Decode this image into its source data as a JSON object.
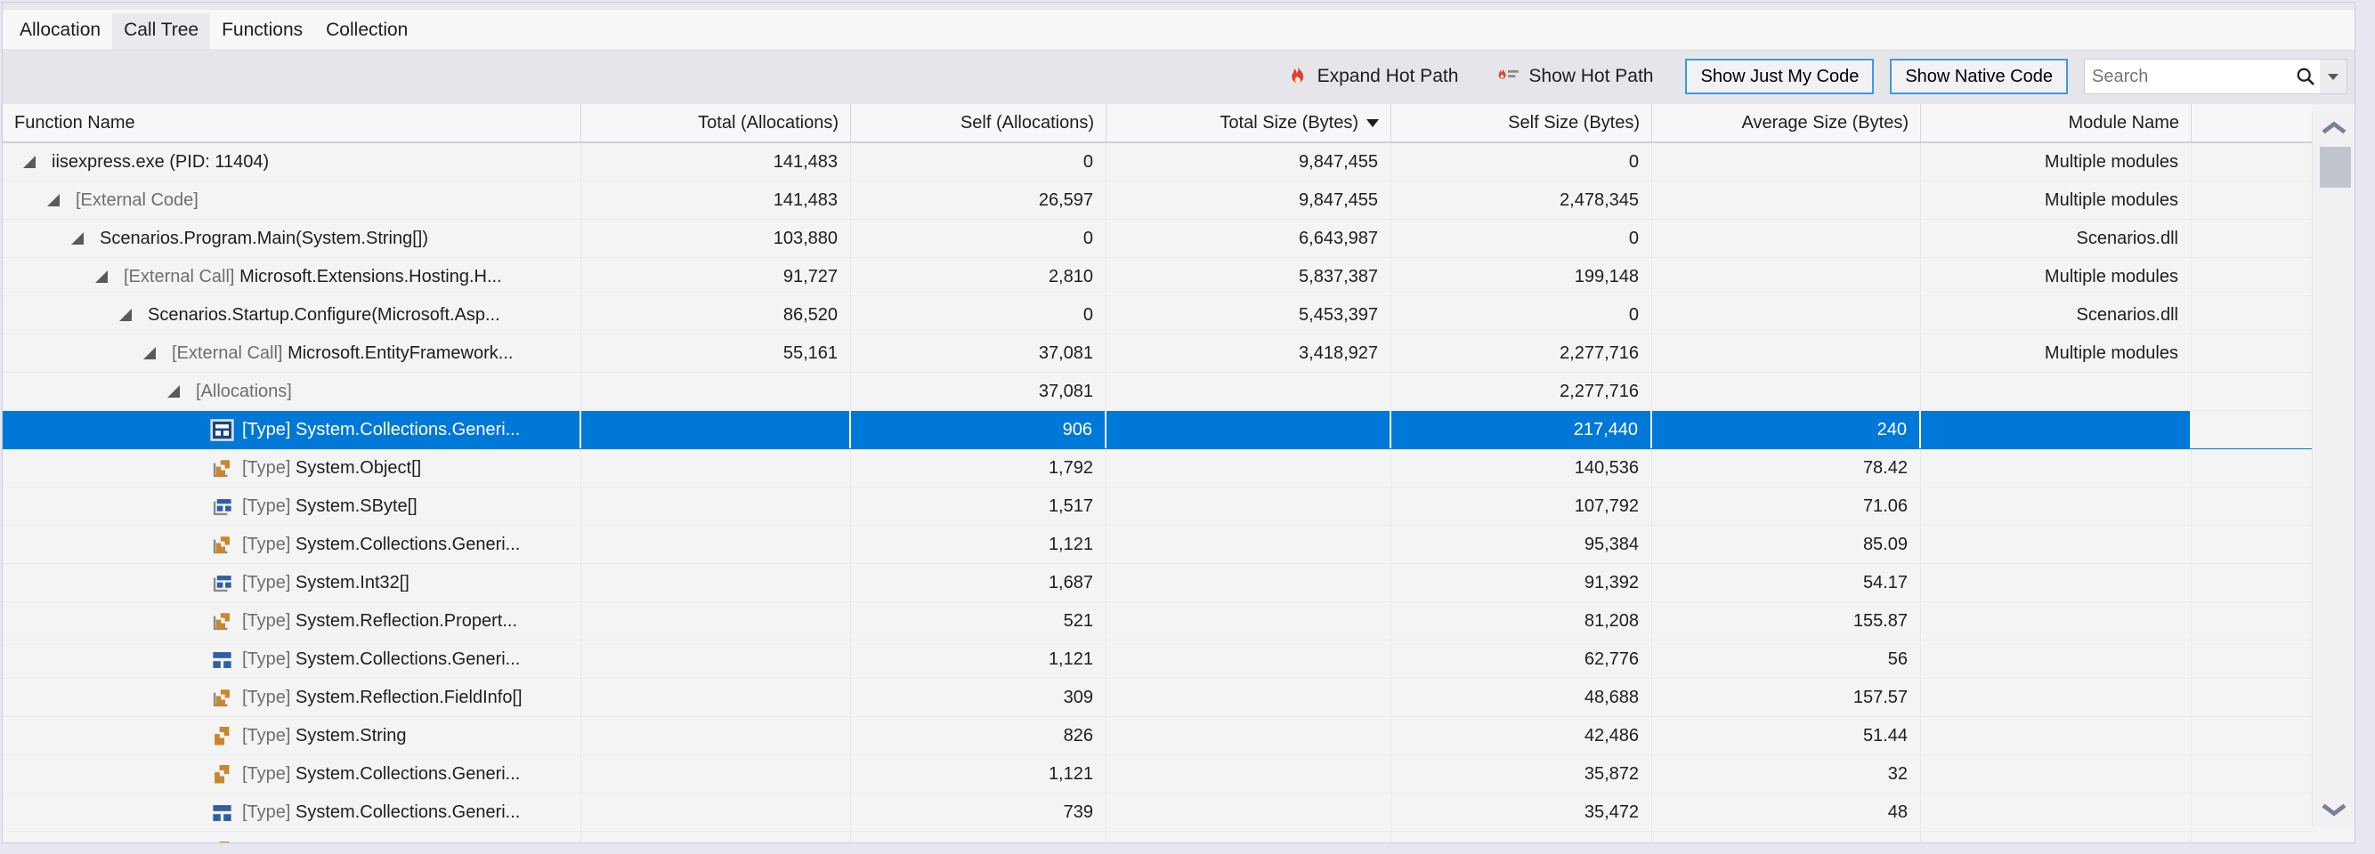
{
  "tabs": [
    {
      "label": "Allocation",
      "active": false
    },
    {
      "label": "Call Tree",
      "active": true
    },
    {
      "label": "Functions",
      "active": false
    },
    {
      "label": "Collection",
      "active": false
    }
  ],
  "toolbar": {
    "expand_hot_path": "Expand Hot Path",
    "show_hot_path": "Show Hot Path",
    "show_just_my_code": "Show Just My Code",
    "show_native_code": "Show Native Code",
    "search_placeholder": "Search",
    "icons": [
      "flame-icon",
      "flame-lines-icon",
      "search-icon",
      "chevron-down-icon"
    ]
  },
  "table": {
    "columns": [
      {
        "id": "name",
        "label": "Function Name",
        "align": "left",
        "sorted": false
      },
      {
        "id": "total_alloc",
        "label": "Total (Allocations)",
        "align": "right",
        "sorted": false
      },
      {
        "id": "self_alloc",
        "label": "Self (Allocations)",
        "align": "right",
        "sorted": false
      },
      {
        "id": "total_size",
        "label": "Total Size (Bytes)",
        "align": "right",
        "sorted": true,
        "sort_dir": "desc"
      },
      {
        "id": "self_size",
        "label": "Self Size (Bytes)",
        "align": "right",
        "sorted": false
      },
      {
        "id": "avg_size",
        "label": "Average Size (Bytes)",
        "align": "right",
        "sorted": false
      },
      {
        "id": "module",
        "label": "Module Name",
        "align": "right",
        "sorted": false
      }
    ],
    "rows": [
      {
        "level": 0,
        "expander": true,
        "icon": null,
        "prefix": "",
        "name": "iisexpress.exe (PID: 11404)",
        "total_alloc": "141,483",
        "self_alloc": "0",
        "total_size": "9,847,455",
        "self_size": "0",
        "avg_size": "",
        "module": "Multiple modules",
        "selected": false
      },
      {
        "level": 1,
        "expander": true,
        "icon": null,
        "prefix": "[External Code]",
        "name": "",
        "total_alloc": "141,483",
        "self_alloc": "26,597",
        "total_size": "9,847,455",
        "self_size": "2,478,345",
        "avg_size": "",
        "module": "Multiple modules",
        "selected": false
      },
      {
        "level": 2,
        "expander": true,
        "icon": null,
        "prefix": "",
        "name": "Scenarios.Program.Main(System.String[])",
        "total_alloc": "103,880",
        "self_alloc": "0",
        "total_size": "6,643,987",
        "self_size": "0",
        "avg_size": "",
        "module": "Scenarios.dll",
        "selected": false
      },
      {
        "level": 3,
        "expander": true,
        "icon": null,
        "prefix": "[External Call] ",
        "name": "Microsoft.Extensions.Hosting.H...",
        "total_alloc": "91,727",
        "self_alloc": "2,810",
        "total_size": "5,837,387",
        "self_size": "199,148",
        "avg_size": "",
        "module": "Multiple modules",
        "selected": false
      },
      {
        "level": 4,
        "expander": true,
        "icon": null,
        "prefix": "",
        "name": "Scenarios.Startup.Configure(Microsoft.Asp...",
        "total_alloc": "86,520",
        "self_alloc": "0",
        "total_size": "5,453,397",
        "self_size": "0",
        "avg_size": "",
        "module": "Scenarios.dll",
        "selected": false
      },
      {
        "level": 5,
        "expander": true,
        "icon": null,
        "prefix": "[External Call] ",
        "name": "Microsoft.EntityFramework...",
        "total_alloc": "55,161",
        "self_alloc": "37,081",
        "total_size": "3,418,927",
        "self_size": "2,277,716",
        "avg_size": "",
        "module": "Multiple modules",
        "selected": false
      },
      {
        "level": 6,
        "expander": true,
        "icon": null,
        "prefix": "[Allocations]",
        "name": "",
        "total_alloc": "",
        "self_alloc": "37,081",
        "total_size": "",
        "self_size": "2,277,716",
        "avg_size": "",
        "module": "",
        "selected": false
      },
      {
        "level": 7,
        "expander": false,
        "icon": "type-table-framed",
        "prefix": "[Type] ",
        "name": "System.Collections.Generi...",
        "total_alloc": "",
        "self_alloc": "906",
        "total_size": "",
        "self_size": "217,440",
        "avg_size": "240",
        "module": "",
        "selected": true
      },
      {
        "level": 7,
        "expander": false,
        "icon": "type-bracket-orange",
        "prefix": "[Type] ",
        "name": "System.Object[]",
        "total_alloc": "",
        "self_alloc": "1,792",
        "total_size": "",
        "self_size": "140,536",
        "avg_size": "78.42",
        "module": "",
        "selected": false
      },
      {
        "level": 7,
        "expander": false,
        "icon": "type-bracket-blue",
        "prefix": "[Type] ",
        "name": "System.SByte[]",
        "total_alloc": "",
        "self_alloc": "1,517",
        "total_size": "",
        "self_size": "107,792",
        "avg_size": "71.06",
        "module": "",
        "selected": false
      },
      {
        "level": 7,
        "expander": false,
        "icon": "type-bracket-orange",
        "prefix": "[Type] ",
        "name": "System.Collections.Generi...",
        "total_alloc": "",
        "self_alloc": "1,121",
        "total_size": "",
        "self_size": "95,384",
        "avg_size": "85.09",
        "module": "",
        "selected": false
      },
      {
        "level": 7,
        "expander": false,
        "icon": "type-bracket-blue",
        "prefix": "[Type] ",
        "name": "System.Int32[]",
        "total_alloc": "",
        "self_alloc": "1,687",
        "total_size": "",
        "self_size": "91,392",
        "avg_size": "54.17",
        "module": "",
        "selected": false
      },
      {
        "level": 7,
        "expander": false,
        "icon": "type-bracket-orange",
        "prefix": "[Type] ",
        "name": "System.Reflection.Propert...",
        "total_alloc": "",
        "self_alloc": "521",
        "total_size": "",
        "self_size": "81,208",
        "avg_size": "155.87",
        "module": "",
        "selected": false
      },
      {
        "level": 7,
        "expander": false,
        "icon": "type-table-blue",
        "prefix": "[Type] ",
        "name": "System.Collections.Generi...",
        "total_alloc": "",
        "self_alloc": "1,121",
        "total_size": "",
        "self_size": "62,776",
        "avg_size": "56",
        "module": "",
        "selected": false
      },
      {
        "level": 7,
        "expander": false,
        "icon": "type-bracket-orange",
        "prefix": "[Type] ",
        "name": "System.Reflection.FieldInfo[]",
        "total_alloc": "",
        "self_alloc": "309",
        "total_size": "",
        "self_size": "48,688",
        "avg_size": "157.57",
        "module": "",
        "selected": false
      },
      {
        "level": 7,
        "expander": false,
        "icon": "type-arrows-orange",
        "prefix": "[Type] ",
        "name": "System.String",
        "total_alloc": "",
        "self_alloc": "826",
        "total_size": "",
        "self_size": "42,486",
        "avg_size": "51.44",
        "module": "",
        "selected": false
      },
      {
        "level": 7,
        "expander": false,
        "icon": "type-arrows-orange",
        "prefix": "[Type] ",
        "name": "System.Collections.Generi...",
        "total_alloc": "",
        "self_alloc": "1,121",
        "total_size": "",
        "self_size": "35,872",
        "avg_size": "32",
        "module": "",
        "selected": false
      },
      {
        "level": 7,
        "expander": false,
        "icon": "type-table-blue",
        "prefix": "[Type] ",
        "name": "System.Collections.Generi...",
        "total_alloc": "",
        "self_alloc": "739",
        "total_size": "",
        "self_size": "35,472",
        "avg_size": "48",
        "module": "",
        "selected": false
      },
      {
        "level": 7,
        "expander": false,
        "icon": "type-arrows-orange",
        "prefix": "",
        "name": "",
        "total_alloc": "",
        "self_alloc": "",
        "total_size": "",
        "self_size": "",
        "avg_size": "",
        "module": "",
        "selected": false,
        "partial": true
      }
    ]
  },
  "colors": {
    "selection_blue": "#0078D7",
    "toggle_button_border": "#3E9BDE",
    "flame_red": "#E5402F",
    "type_icon_orange": "#C8872B",
    "type_icon_blue": "#2F5FA5",
    "gray_text": "#6E6E6E"
  }
}
